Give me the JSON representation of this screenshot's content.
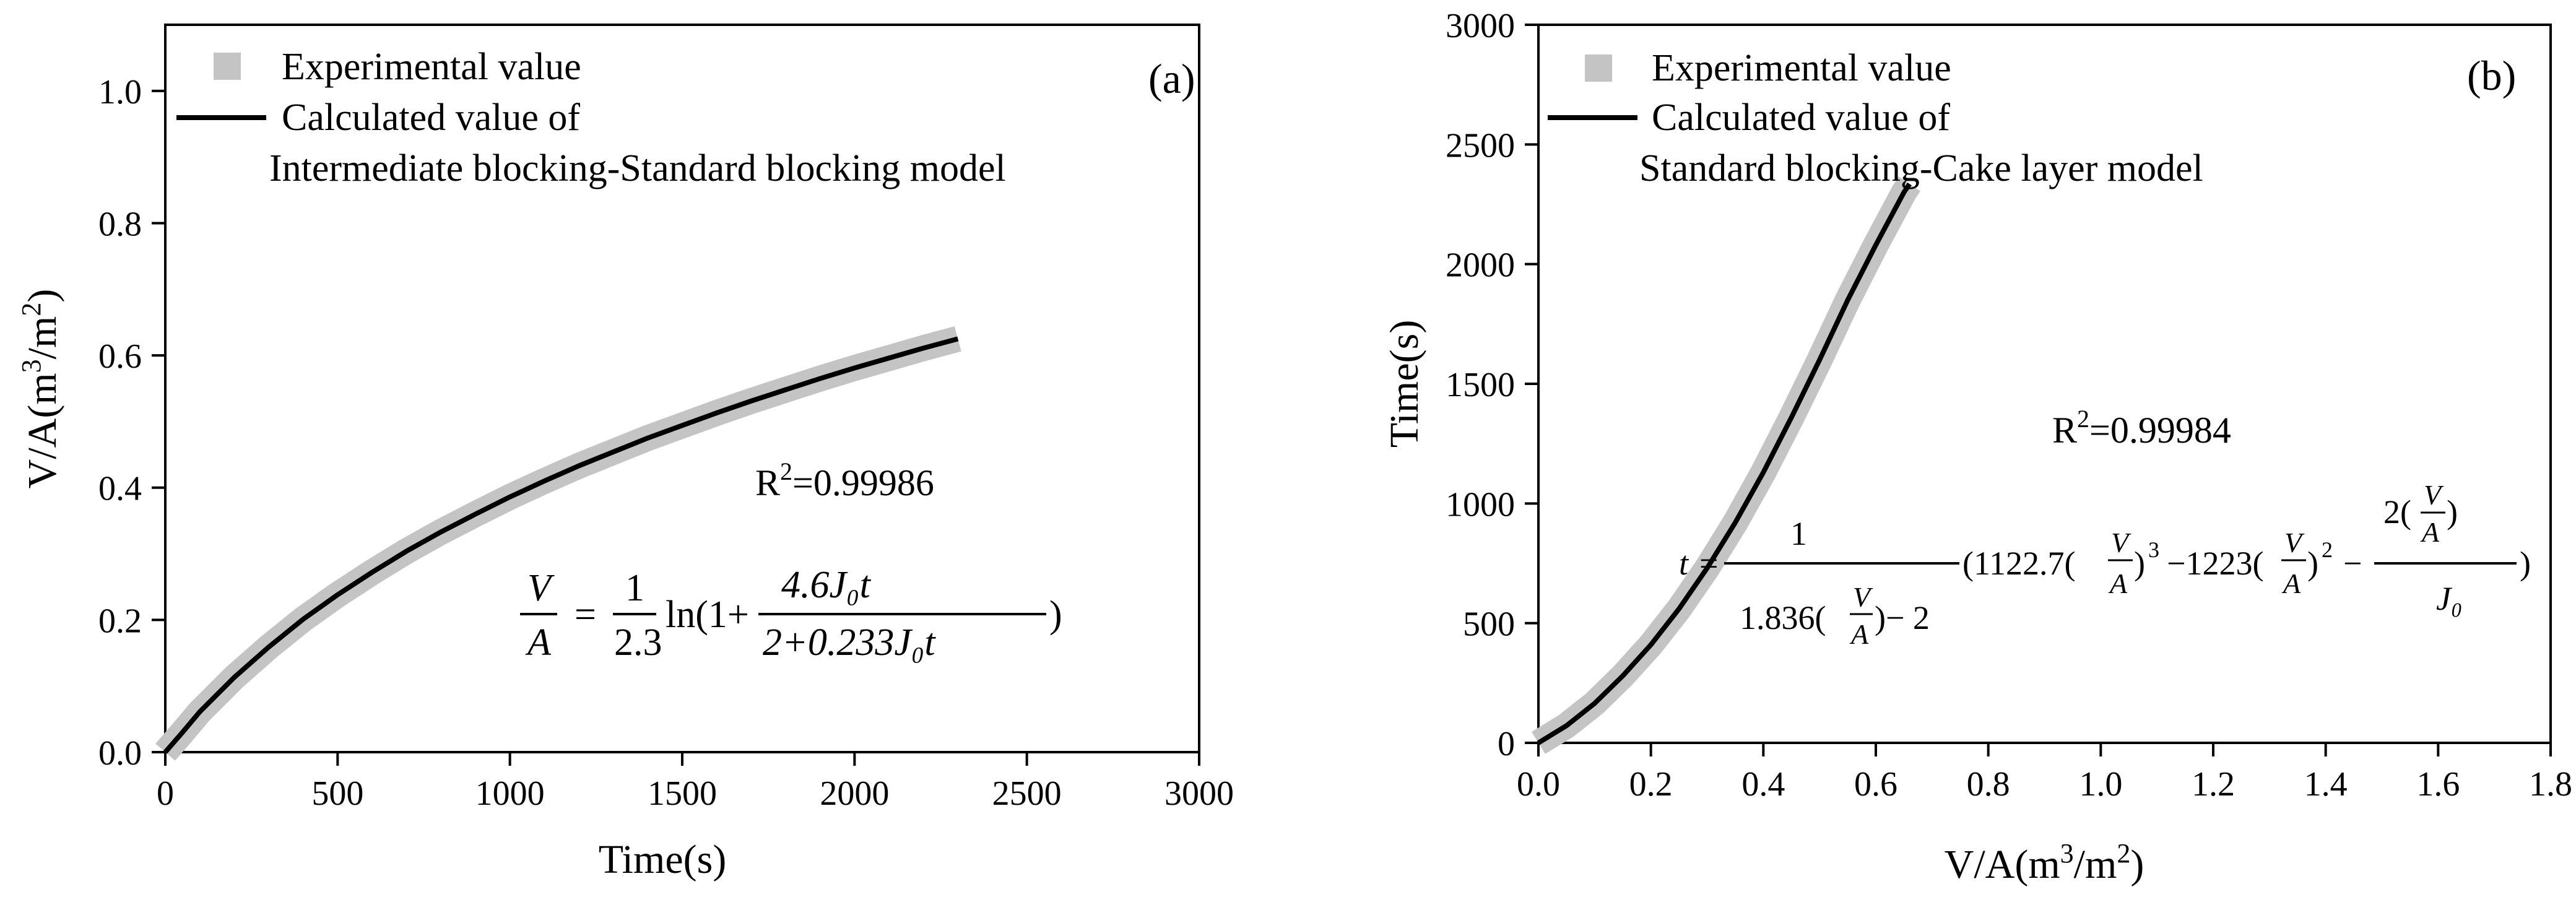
{
  "colors": {
    "experimental": "#c4c4c4",
    "calculated": "#000000",
    "axis": "#000000"
  },
  "chart_data": [
    {
      "type": "line",
      "panel_label": "(a)",
      "xlabel": "Time(s)",
      "ylabel_parts": {
        "main": "V/A(m",
        "sup1": "3",
        "mid": "/m",
        "sup2": "2",
        "end": ")"
      },
      "xlim": [
        0,
        3000
      ],
      "ylim": [
        0,
        1.1
      ],
      "xticks": [
        "0",
        "500",
        "1000",
        "1500",
        "2000",
        "2500",
        "3000"
      ],
      "yticks": [
        "0.0",
        "0.2",
        "0.4",
        "0.6",
        "0.8",
        "1.0"
      ],
      "legend": [
        {
          "label": "Experimental value",
          "style": "gray-square"
        },
        {
          "label": "Calculated value of",
          "label2": "Intermediate blocking-Standard blocking model",
          "style": "black-line"
        }
      ],
      "r2": {
        "base": "R",
        "sup": "2",
        "value": "=0.99986"
      },
      "equation": {
        "lhs_num": "V",
        "lhs_den": "A",
        "eq": "=",
        "c_num": "1",
        "c_den": "2.3",
        "ln": "ln(1+",
        "f_num": "4.6J₀t",
        "f_den": "2+0.233J₀t",
        "close": ")"
      },
      "series": [
        {
          "name": "Experimental value",
          "style": "band",
          "points": [
            [
              0,
              0.0
            ],
            [
              50,
              0.03
            ],
            [
              100,
              0.061
            ],
            [
              200,
              0.113
            ],
            [
              300,
              0.159
            ],
            [
              400,
              0.201
            ],
            [
              500,
              0.238
            ],
            [
              600,
              0.272
            ],
            [
              700,
              0.304
            ],
            [
              800,
              0.333
            ],
            [
              900,
              0.36
            ],
            [
              1000,
              0.386
            ],
            [
              1100,
              0.41
            ],
            [
              1200,
              0.433
            ],
            [
              1300,
              0.454
            ],
            [
              1400,
              0.475
            ],
            [
              1500,
              0.494
            ],
            [
              1600,
              0.513
            ],
            [
              1700,
              0.531
            ],
            [
              1800,
              0.548
            ],
            [
              1900,
              0.565
            ],
            [
              2000,
              0.581
            ],
            [
              2100,
              0.596
            ],
            [
              2200,
              0.611
            ],
            [
              2300,
              0.625
            ]
          ]
        },
        {
          "name": "Calculated value of Intermediate blocking-Standard blocking model",
          "style": "line",
          "points": [
            [
              0,
              0.0
            ],
            [
              50,
              0.03
            ],
            [
              100,
              0.061
            ],
            [
              200,
              0.113
            ],
            [
              300,
              0.159
            ],
            [
              400,
              0.201
            ],
            [
              500,
              0.238
            ],
            [
              600,
              0.272
            ],
            [
              700,
              0.304
            ],
            [
              800,
              0.333
            ],
            [
              900,
              0.36
            ],
            [
              1000,
              0.386
            ],
            [
              1100,
              0.41
            ],
            [
              1200,
              0.433
            ],
            [
              1300,
              0.454
            ],
            [
              1400,
              0.475
            ],
            [
              1500,
              0.494
            ],
            [
              1600,
              0.513
            ],
            [
              1700,
              0.531
            ],
            [
              1800,
              0.548
            ],
            [
              1900,
              0.565
            ],
            [
              2000,
              0.581
            ],
            [
              2100,
              0.596
            ],
            [
              2200,
              0.611
            ],
            [
              2300,
              0.625
            ]
          ]
        }
      ]
    },
    {
      "type": "line",
      "panel_label": "(b)",
      "xlabel_parts": {
        "main": "V/A(m",
        "sup1": "3",
        "mid": "/m",
        "sup2": "2",
        "end": ")"
      },
      "ylabel": "Time(s)",
      "xlim": [
        0,
        1.8
      ],
      "ylim": [
        0,
        3000
      ],
      "xticks": [
        "0.0",
        "0.2",
        "0.4",
        "0.6",
        "0.8",
        "1.0",
        "1.2",
        "1.4",
        "1.6",
        "1.8"
      ],
      "yticks": [
        "0",
        "500",
        "1000",
        "1500",
        "2000",
        "2500",
        "3000"
      ],
      "legend": [
        {
          "label": "Experimental value",
          "style": "gray-square"
        },
        {
          "label": "Calculated value of",
          "label2": "Standard blocking-Cake layer model",
          "style": "black-line"
        }
      ],
      "r2": {
        "base": "R",
        "sup": "2",
        "value": "=0.99984"
      },
      "equation": {
        "t": "t",
        "eq": "=",
        "c_num": "1",
        "c_den_a": "1.836(",
        "c_den_frac_num": "V",
        "c_den_frac_den": "A",
        "c_den_b": ")− 2",
        "p1": "(1122.7(",
        "p2": ")",
        "e3": "3",
        "p3": "−1223(",
        "p4": ")",
        "e2": "2",
        "p5": "−",
        "v": "V",
        "a": "A",
        "last_num_a": "2(",
        "last_num_b": ")",
        "last_den": "J₀",
        "close": ")"
      },
      "series": [
        {
          "name": "Experimental value",
          "style": "band",
          "points": [
            [
              0,
              0
            ],
            [
              0.05,
              72
            ],
            [
              0.1,
              165
            ],
            [
              0.15,
              280
            ],
            [
              0.2,
              410
            ],
            [
              0.25,
              560
            ],
            [
              0.3,
              730
            ],
            [
              0.35,
              920
            ],
            [
              0.4,
              1130
            ],
            [
              0.45,
              1360
            ],
            [
              0.5,
              1600
            ],
            [
              0.55,
              1850
            ],
            [
              0.6,
              2080
            ],
            [
              0.65,
              2300
            ],
            [
              0.66,
              2335
            ]
          ]
        },
        {
          "name": "Calculated value of Standard blocking-Cake layer model",
          "style": "line",
          "points": [
            [
              0,
              0
            ],
            [
              0.05,
              72
            ],
            [
              0.1,
              165
            ],
            [
              0.15,
              280
            ],
            [
              0.2,
              410
            ],
            [
              0.25,
              560
            ],
            [
              0.3,
              730
            ],
            [
              0.35,
              920
            ],
            [
              0.4,
              1130
            ],
            [
              0.45,
              1360
            ],
            [
              0.5,
              1600
            ],
            [
              0.55,
              1850
            ],
            [
              0.6,
              2080
            ],
            [
              0.65,
              2300
            ],
            [
              0.66,
              2335
            ]
          ]
        }
      ]
    }
  ]
}
